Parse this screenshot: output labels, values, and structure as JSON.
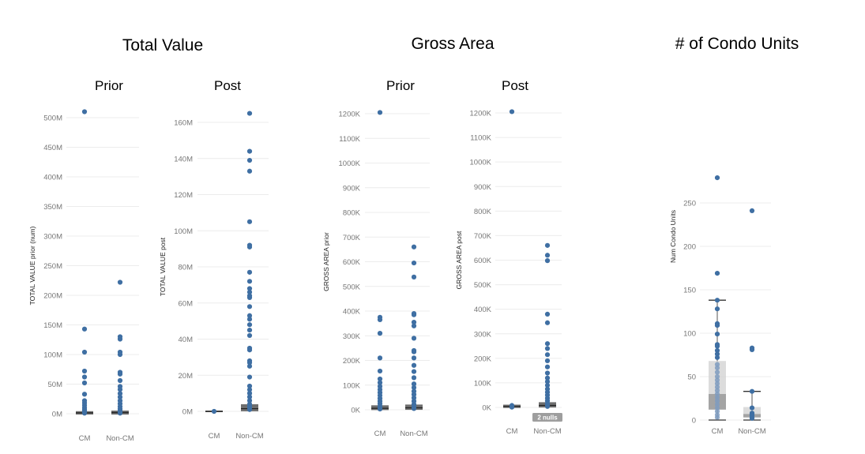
{
  "group_titles": {
    "total_value": "Total Value",
    "gross_area": "Gross Area",
    "condo_units": "# of Condo Units"
  },
  "panel_titles": {
    "tv_prior": "Prior",
    "tv_post": "Post",
    "ga_prior": "Prior",
    "ga_post": "Post"
  },
  "theme": {
    "dot_color": "#3f6fa3",
    "grid_color": "#ececec",
    "axis_text_color": "#777777",
    "box_dark": "#9a9a9a",
    "box_light": "#d6d6d6",
    "null_badge_color": "#9e9e9e"
  },
  "chart_data": [
    {
      "id": "tv_prior",
      "type": "scatter",
      "title": "Prior",
      "ylabel": "TOTAL VALUE prior (num)",
      "categories": [
        "CM",
        "Non-CM"
      ],
      "ylim": [
        0,
        500000000
      ],
      "yticks": [
        0,
        50000000,
        100000000,
        150000000,
        200000000,
        250000000,
        300000000,
        350000000,
        400000000,
        450000000,
        500000000
      ],
      "yticklabels": [
        "0M",
        "50M",
        "100M",
        "150M",
        "200M",
        "250M",
        "300M",
        "350M",
        "400M",
        "450M",
        "500M"
      ],
      "series": [
        {
          "category": "CM",
          "values": [
            510000000,
            143000000,
            104000000,
            72000000,
            62000000,
            52000000,
            33000000,
            22000000,
            18000000,
            14000000,
            10000000,
            7000000,
            5000000,
            3000000,
            2000000,
            1000000
          ]
        },
        {
          "category": "Non-CM",
          "values": [
            222000000,
            130000000,
            126000000,
            104000000,
            100000000,
            70000000,
            67000000,
            56000000,
            46000000,
            41000000,
            34000000,
            28000000,
            22000000,
            17000000,
            12000000,
            8000000,
            5000000,
            3000000,
            1000000
          ]
        }
      ],
      "boxes": [
        {
          "category": "CM",
          "q1": 0,
          "median": 1500000,
          "q3": 3000000
        },
        {
          "category": "Non-CM",
          "q1": 0,
          "median": 2000000,
          "q3": 4000000
        }
      ]
    },
    {
      "id": "tv_post",
      "type": "scatter",
      "title": "Post",
      "ylabel": "TOTAL VALUE post",
      "categories": [
        "CM",
        "Non-CM"
      ],
      "ylim": [
        0,
        160000000
      ],
      "yticks": [
        0,
        20000000,
        40000000,
        60000000,
        80000000,
        100000000,
        120000000,
        140000000,
        160000000
      ],
      "yticklabels": [
        "0M",
        "20M",
        "40M",
        "60M",
        "80M",
        "100M",
        "120M",
        "140M",
        "160M"
      ],
      "series": [
        {
          "category": "CM",
          "values": [
            0
          ]
        },
        {
          "category": "Non-CM",
          "values": [
            165000000,
            144000000,
            139000000,
            133000000,
            105000000,
            92000000,
            91000000,
            77000000,
            72000000,
            68000000,
            66000000,
            64000000,
            63000000,
            58000000,
            53000000,
            51000000,
            48000000,
            45000000,
            42000000,
            35000000,
            34000000,
            28000000,
            27000000,
            25000000,
            19000000,
            14000000,
            12000000,
            10000000,
            8000000,
            6000000,
            4000000,
            3000000,
            2000000,
            1000000
          ]
        }
      ],
      "boxes": [
        {
          "category": "CM",
          "q1": 0,
          "median": 0,
          "q3": 0
        },
        {
          "category": "Non-CM",
          "q1": 500000,
          "median": 1500000,
          "q3": 3500000
        }
      ]
    },
    {
      "id": "ga_prior",
      "type": "scatter",
      "title": "Prior",
      "ylabel": "GROSS AREA prior",
      "categories": [
        "CM",
        "Non-CM"
      ],
      "ylim": [
        0,
        1200000
      ],
      "yticks": [
        0,
        100000,
        200000,
        300000,
        400000,
        500000,
        600000,
        700000,
        800000,
        900000,
        1000000,
        1100000,
        1200000
      ],
      "yticklabels": [
        "0K",
        "100K",
        "200K",
        "300K",
        "400K",
        "500K",
        "600K",
        "700K",
        "800K",
        "900K",
        "1000K",
        "1100K",
        "1200K"
      ],
      "series": [
        {
          "category": "CM",
          "values": [
            1205000,
            375000,
            365000,
            310000,
            210000,
            157000,
            125000,
            110000,
            95000,
            82000,
            70000,
            58000,
            46000,
            35000,
            25000,
            15000,
            8000,
            3000
          ]
        },
        {
          "category": "Non-CM",
          "values": [
            660000,
            595000,
            538000,
            390000,
            385000,
            355000,
            340000,
            290000,
            240000,
            235000,
            210000,
            180000,
            155000,
            130000,
            105000,
            90000,
            75000,
            62000,
            48000,
            35000,
            22000,
            12000,
            5000
          ]
        }
      ],
      "boxes": [
        {
          "category": "CM",
          "q1": 2000,
          "median": 6000,
          "q3": 15000
        },
        {
          "category": "Non-CM",
          "q1": 3000,
          "median": 8000,
          "q3": 18000
        }
      ]
    },
    {
      "id": "ga_post",
      "type": "scatter",
      "title": "Post",
      "ylabel": "GROSS AREA post",
      "categories": [
        "CM",
        "Non-CM"
      ],
      "ylim": [
        0,
        1200000
      ],
      "yticks": [
        0,
        100000,
        200000,
        300000,
        400000,
        500000,
        600000,
        700000,
        800000,
        900000,
        1000000,
        1100000,
        1200000
      ],
      "yticklabels": [
        "0K",
        "100K",
        "200K",
        "300K",
        "400K",
        "500K",
        "600K",
        "700K",
        "800K",
        "900K",
        "1000K",
        "1100K",
        "1200K"
      ],
      "null_badge": {
        "category": "Non-CM",
        "label": "2 nulls"
      },
      "series": [
        {
          "category": "CM",
          "values": [
            1205000,
            8000,
            4000,
            1000
          ]
        },
        {
          "category": "Non-CM",
          "values": [
            660000,
            620000,
            598000,
            380000,
            345000,
            260000,
            240000,
            215000,
            190000,
            165000,
            140000,
            120000,
            105000,
            90000,
            75000,
            62000,
            50000,
            38000,
            27000,
            17000,
            9000,
            4000
          ]
        }
      ],
      "boxes": [
        {
          "category": "CM",
          "q1": 1000,
          "median": 4000,
          "q3": 8000
        },
        {
          "category": "Non-CM",
          "q1": 3000,
          "median": 8000,
          "q3": 18000
        }
      ]
    },
    {
      "id": "condo_units",
      "type": "scatter",
      "title": "",
      "ylabel": "Num Condo Units",
      "categories": [
        "CM",
        "Non-CM"
      ],
      "ylim": [
        0,
        275
      ],
      "yticks": [
        0,
        50,
        100,
        150,
        200,
        250
      ],
      "yticklabels": [
        "0",
        "50",
        "100",
        "150",
        "200",
        "250"
      ],
      "series": [
        {
          "category": "CM",
          "values": [
            279,
            169,
            138,
            128,
            111,
            109,
            99,
            87,
            85,
            80,
            76,
            72,
            64,
            60,
            55,
            50,
            46,
            42,
            38,
            34,
            30,
            26,
            22,
            18,
            14,
            10,
            6,
            3
          ]
        },
        {
          "category": "Non-CM",
          "values": [
            241,
            83,
            81,
            33,
            14,
            8,
            6,
            5,
            3,
            2
          ]
        }
      ],
      "boxes": [
        {
          "category": "CM",
          "whisker_low": 0,
          "q1": 12,
          "median": 30,
          "q3": 68,
          "whisker_high": 138
        },
        {
          "category": "Non-CM",
          "whisker_low": 0,
          "q1": 3,
          "median": 7,
          "q3": 15,
          "whisker_high": 33
        }
      ]
    }
  ]
}
